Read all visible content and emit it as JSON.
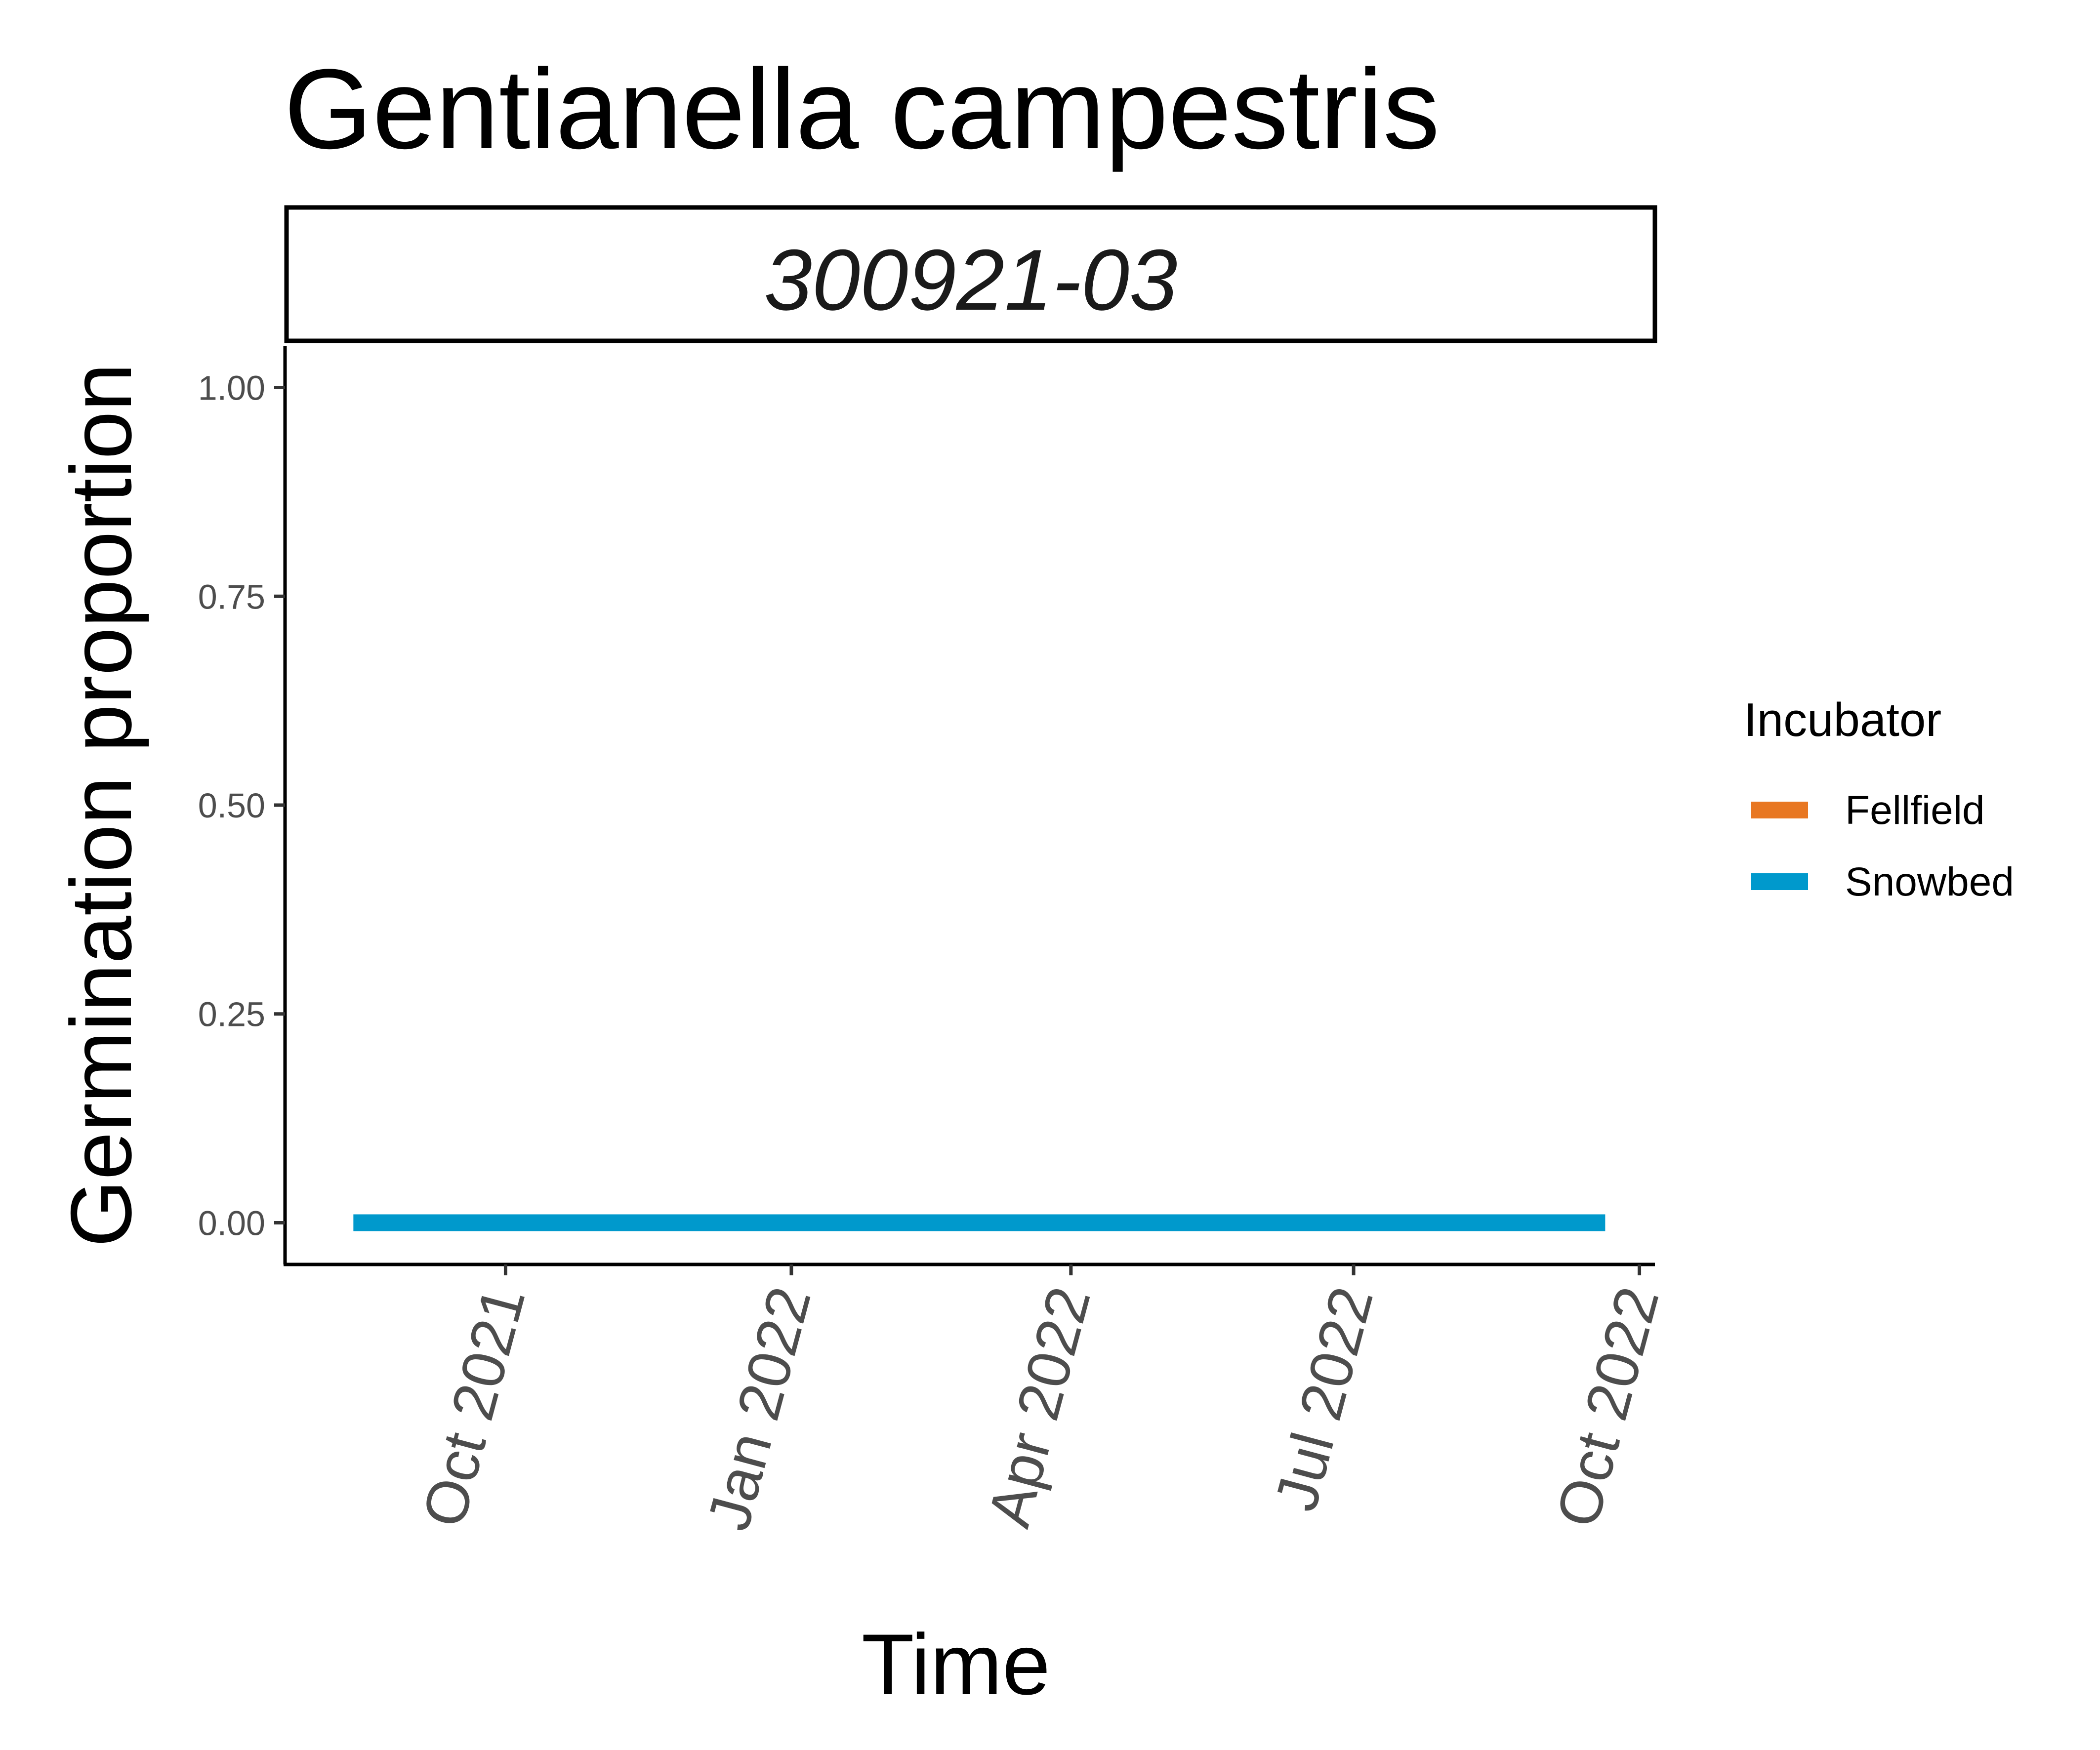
{
  "chart_data": {
    "type": "line",
    "title": "Gentianella campestris",
    "facet_label": "300921-03",
    "xlabel": "Time",
    "ylabel": "Germination proportion",
    "xlim": [
      "2021-07-22",
      "2022-10-06"
    ],
    "ylim": [
      -0.05,
      1.05
    ],
    "x_ticks": [
      {
        "date": "2021-10-01",
        "label": "Oct 2021"
      },
      {
        "date": "2022-01-01",
        "label": "Jan 2022"
      },
      {
        "date": "2022-04-01",
        "label": "Apr 2022"
      },
      {
        "date": "2022-07-01",
        "label": "Jul 2022"
      },
      {
        "date": "2022-10-01",
        "label": "Oct 2022"
      }
    ],
    "y_ticks": [
      {
        "value": 0.0,
        "label": "0.00"
      },
      {
        "value": 0.25,
        "label": "0.25"
      },
      {
        "value": 0.5,
        "label": "0.50"
      },
      {
        "value": 0.75,
        "label": "0.75"
      },
      {
        "value": 1.0,
        "label": "1.00"
      }
    ],
    "legend": {
      "title": "Incubator",
      "position": "right"
    },
    "grid": false,
    "series": [
      {
        "name": "Fellfield",
        "color": "#e87722",
        "points": []
      },
      {
        "name": "Snowbed",
        "color": "#0099cc",
        "points": [
          {
            "x": "2021-08-13",
            "y": 0.0
          },
          {
            "x": "2022-09-20",
            "y": 0.0
          }
        ]
      }
    ]
  }
}
